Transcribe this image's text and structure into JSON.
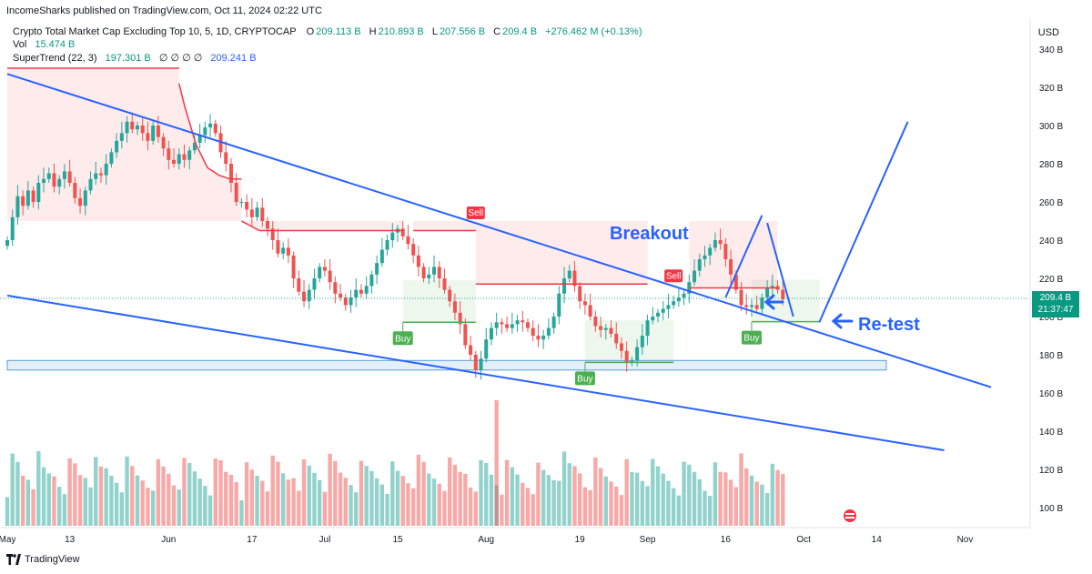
{
  "header": {
    "published": "IncomeSharks published on TradingView.com, Oct 11, 2024 02:22 UTC",
    "symbol_title": "Crypto Total Market Cap Excluding Top 10, 5, 1D, CRYPTOCAP",
    "ohlc": {
      "o_label": "O",
      "o_value": "209.113 B",
      "h_label": "H",
      "h_value": "210.893 B",
      "l_label": "L",
      "l_value": "207.556 B",
      "c_label": "C",
      "c_value": "209.4 B",
      "change": "+276.462 M (+0.13%)"
    },
    "vol_label": "Vol",
    "vol_value": "15.474 B",
    "supertrend_label": "SuperTrend (22, 3)",
    "supertrend_up": "197.301 B",
    "supertrend_zeros": "∅ ∅ ∅ ∅",
    "supertrend_down": "209.241 B",
    "currency": "USD"
  },
  "footer": {
    "brand": "TradingView"
  },
  "last_price": {
    "value": "209.4 B",
    "countdown": "21:37:47"
  },
  "annotations": {
    "breakout": "Breakout",
    "retest": "Re-test"
  },
  "signals": {
    "buy": "Buy",
    "sell": "Sell"
  },
  "colors": {
    "up": "#26a69a",
    "down": "#ef5350",
    "trendline": "#2962ff",
    "st_up": "#4caf50",
    "st_down": "#f23645"
  },
  "chart_data": {
    "type": "candlestick",
    "title": "Crypto Total Market Cap Excluding Top 10, 5, 1D, CRYPTOCAP",
    "ylabel": "USD",
    "ylim": [
      90,
      345
    ],
    "y_ticks": [
      "340 B",
      "320 B",
      "300 B",
      "280 B",
      "260 B",
      "240 B",
      "220 B",
      "200 B",
      "180 B",
      "160 B",
      "140 B",
      "120 B",
      "100 B"
    ],
    "y_tick_values": [
      340,
      320,
      300,
      280,
      260,
      240,
      220,
      200,
      180,
      160,
      140,
      120,
      100
    ],
    "x_ticks": [
      "May",
      "13",
      "Jun",
      "17",
      "Jul",
      "15",
      "Aug",
      "19",
      "Sep",
      "16",
      "Oct",
      "14",
      "Nov"
    ],
    "x_tick_days": [
      0,
      12,
      31,
      47,
      61,
      75,
      92,
      110,
      123,
      138,
      153,
      167,
      184
    ],
    "close_series": [
      {
        "start_day": 0,
        "closes": [
          240,
          252,
          263,
          258,
          266,
          260,
          270,
          272,
          275,
          268,
          272,
          276,
          270,
          262,
          258,
          266,
          272,
          275,
          274,
          280,
          286,
          292,
          296,
          302,
          298,
          300,
          296,
          292,
          300,
          294,
          288,
          282,
          280,
          285,
          282,
          287,
          291,
          295,
          299,
          301,
          296,
          286,
          280,
          270,
          260,
          260,
          256,
          252,
          257,
          250,
          246,
          240,
          233,
          236,
          232,
          220,
          213,
          208,
          214,
          220,
          226,
          224,
          218,
          212,
          210,
          206,
          210,
          214,
          212,
          216,
          222,
          228,
          235,
          240,
          244,
          246,
          242,
          238,
          232,
          226,
          220,
          222,
          226,
          220,
          214,
          208,
          202,
          196,
          185,
          180,
          172,
          178,
          188,
          194,
          197,
          196,
          194,
          196,
          198,
          197,
          194,
          190,
          188,
          190,
          194,
          200,
          212,
          220,
          224,
          216,
          208,
          206,
          200,
          195,
          193,
          194,
          191,
          186,
          182,
          176,
          177,
          184,
          190,
          198,
          200,
          202,
          204,
          206,
          208,
          210,
          212,
          218,
          224,
          230,
          232,
          236,
          240,
          238,
          230,
          222,
          214,
          206,
          205,
          206,
          204,
          210,
          215,
          216,
          214,
          209
        ]
      }
    ],
    "supertrend": {
      "down_segments": [
        {
          "from_day": 0,
          "to_day": 33,
          "value": 330
        },
        {
          "from_day": 33,
          "to_day": 45,
          "values": [
            322,
            310,
            300,
            290,
            284,
            278,
            276,
            274,
            273,
            272,
            272,
            272
          ]
        },
        {
          "from_day": 45,
          "to_day": 76,
          "values": [
            250,
            245,
            245,
            245,
            245,
            245,
            245,
            245,
            245,
            245
          ]
        },
        {
          "from_day": 78,
          "to_day": 90,
          "value": 245
        },
        {
          "from_day": 90,
          "to_day": 123,
          "value": 217
        },
        {
          "from_day": 131,
          "to_day": 148,
          "value": 215
        }
      ],
      "up_segments": [
        {
          "from_day": 76,
          "to_day": 90,
          "value": 197
        },
        {
          "from_day": 111,
          "to_day": 128,
          "value": 176
        },
        {
          "from_day": 143,
          "to_day": 156,
          "value": 197.3
        }
      ],
      "buy_days": [
        76,
        111,
        143
      ],
      "sell_days": [
        90,
        128
      ]
    },
    "trendlines": [
      {
        "from": [
          0,
          327
        ],
        "to": [
          189,
          163
        ]
      },
      {
        "from": [
          0,
          211
        ],
        "to": [
          180,
          130
        ]
      },
      {
        "from": [
          138,
          210
        ],
        "to": [
          145,
          253
        ]
      },
      {
        "from": [
          146,
          249
        ],
        "to": [
          151,
          200
        ]
      },
      {
        "from": [
          156,
          197
        ],
        "to": [
          173,
          302
        ]
      }
    ],
    "support_zone": [
      172,
      177
    ]
  }
}
